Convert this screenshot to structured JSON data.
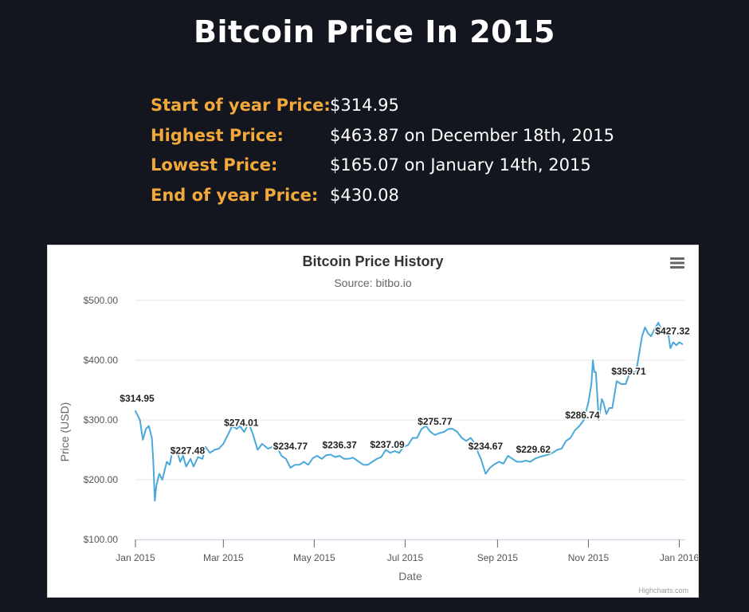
{
  "page": {
    "title": "Bitcoin Price In 2015"
  },
  "stats": [
    {
      "label": "Start of year Price:",
      "value": "$314.95"
    },
    {
      "label": "Highest Price:",
      "value": "$463.87 on December 18th, 2015"
    },
    {
      "label": "Lowest Price:",
      "value": "$165.07 on January 14th, 2015"
    },
    {
      "label": "End of year Price:",
      "value": "$430.08"
    }
  ],
  "chart_menu_icon": "hamburger-menu-icon",
  "credit": "Highcharts.com",
  "colors": {
    "background": "#14161f",
    "accent": "#f2a93b",
    "line": "#4aa9d9"
  },
  "chart_data": {
    "type": "line",
    "title": "Bitcoin Price History",
    "subtitle": "Source: bitbo.io",
    "xlabel": "Date",
    "ylabel": "Price (USD)",
    "ylim": [
      100,
      500
    ],
    "xlim": [
      "2015-01-01",
      "2016-01-05"
    ],
    "grid": true,
    "x_ticks": [
      {
        "date": "2015-01-01",
        "label": "Jan 2015"
      },
      {
        "date": "2015-03-01",
        "label": "Mar 2015"
      },
      {
        "date": "2015-05-01",
        "label": "May 2015"
      },
      {
        "date": "2015-07-01",
        "label": "Jul 2015"
      },
      {
        "date": "2015-09-01",
        "label": "Sep 2015"
      },
      {
        "date": "2015-11-01",
        "label": "Nov 2015"
      },
      {
        "date": "2016-01-01",
        "label": "Jan 2016"
      }
    ],
    "y_ticks": [
      {
        "value": 100,
        "label": "$100.00"
      },
      {
        "value": 200,
        "label": "$200.00"
      },
      {
        "value": 300,
        "label": "$300.00"
      },
      {
        "value": 400,
        "label": "$400.00"
      },
      {
        "value": 500,
        "label": "$500.00"
      }
    ],
    "series": [
      {
        "x": [
          "2015-01-01",
          "2015-01-04",
          "2015-01-06",
          "2015-01-08",
          "2015-01-10",
          "2015-01-12",
          "2015-01-13",
          "2015-01-14",
          "2015-01-15",
          "2015-01-17",
          "2015-01-19",
          "2015-01-22",
          "2015-01-24",
          "2015-01-26",
          "2015-01-28",
          "2015-01-31",
          "2015-02-02",
          "2015-02-04",
          "2015-02-07",
          "2015-02-09",
          "2015-02-12",
          "2015-02-15",
          "2015-02-17",
          "2015-02-20",
          "2015-02-23",
          "2015-02-26",
          "2015-03-01",
          "2015-03-04",
          "2015-03-07",
          "2015-03-10",
          "2015-03-12",
          "2015-03-15",
          "2015-03-18",
          "2015-03-21",
          "2015-03-24",
          "2015-03-27",
          "2015-03-31",
          "2015-04-03",
          "2015-04-06",
          "2015-04-09",
          "2015-04-12",
          "2015-04-15",
          "2015-04-18",
          "2015-04-21",
          "2015-04-24",
          "2015-04-27",
          "2015-04-30",
          "2015-05-03",
          "2015-05-06",
          "2015-05-09",
          "2015-05-12",
          "2015-05-15",
          "2015-05-18",
          "2015-05-21",
          "2015-05-24",
          "2015-05-27",
          "2015-05-31",
          "2015-06-03",
          "2015-06-06",
          "2015-06-09",
          "2015-06-12",
          "2015-06-15",
          "2015-06-18",
          "2015-06-21",
          "2015-06-24",
          "2015-06-27",
          "2015-06-30",
          "2015-07-03",
          "2015-07-06",
          "2015-07-09",
          "2015-07-12",
          "2015-07-15",
          "2015-07-18",
          "2015-07-21",
          "2015-07-24",
          "2015-07-27",
          "2015-07-30",
          "2015-08-02",
          "2015-08-05",
          "2015-08-08",
          "2015-08-11",
          "2015-08-14",
          "2015-08-17",
          "2015-08-19",
          "2015-08-21",
          "2015-08-24",
          "2015-08-27",
          "2015-08-30",
          "2015-09-02",
          "2015-09-05",
          "2015-09-08",
          "2015-09-11",
          "2015-09-14",
          "2015-09-17",
          "2015-09-20",
          "2015-09-23",
          "2015-09-26",
          "2015-09-29",
          "2015-10-02",
          "2015-10-05",
          "2015-10-08",
          "2015-10-11",
          "2015-10-14",
          "2015-10-17",
          "2015-10-20",
          "2015-10-23",
          "2015-10-26",
          "2015-10-29",
          "2015-11-01",
          "2015-11-03",
          "2015-11-04",
          "2015-11-05",
          "2015-11-06",
          "2015-11-08",
          "2015-11-10",
          "2015-11-11",
          "2015-11-13",
          "2015-11-15",
          "2015-11-17",
          "2015-11-20",
          "2015-11-23",
          "2015-11-26",
          "2015-11-29",
          "2015-12-01",
          "2015-12-03",
          "2015-12-05",
          "2015-12-07",
          "2015-12-09",
          "2015-12-11",
          "2015-12-13",
          "2015-12-15",
          "2015-12-18",
          "2015-12-20",
          "2015-12-22",
          "2015-12-24",
          "2015-12-26",
          "2015-12-28",
          "2015-12-30",
          "2016-01-01",
          "2016-01-03"
        ],
        "y": [
          315,
          300,
          267,
          285,
          290,
          270,
          230,
          165,
          190,
          210,
          200,
          230,
          225,
          250,
          255,
          230,
          240,
          222,
          235,
          222,
          238,
          235,
          255,
          245,
          250,
          252,
          260,
          275,
          290,
          285,
          290,
          280,
          295,
          275,
          250,
          260,
          252,
          255,
          255,
          240,
          235,
          220,
          225,
          225,
          230,
          225,
          236,
          240,
          235,
          241,
          242,
          238,
          240,
          235,
          235,
          237,
          230,
          225,
          225,
          230,
          235,
          238,
          250,
          245,
          248,
          245,
          255,
          258,
          270,
          270,
          285,
          290,
          280,
          275,
          278,
          280,
          285,
          285,
          280,
          270,
          265,
          270,
          260,
          245,
          234,
          210,
          220,
          226,
          230,
          227,
          240,
          235,
          230,
          230,
          232,
          230,
          235,
          238,
          240,
          242,
          245,
          250,
          252,
          265,
          270,
          283,
          290,
          300,
          330,
          360,
          400,
          380,
          380,
          300,
          335,
          330,
          310,
          320,
          320,
          365,
          360,
          360,
          380,
          380,
          380,
          410,
          440,
          455,
          445,
          440,
          450,
          463,
          450,
          445,
          455,
          420,
          430,
          425,
          430,
          427
        ]
      }
    ],
    "data_labels": [
      {
        "date": "2015-01-01",
        "value": 314.95,
        "label": "$314.95"
      },
      {
        "date": "2015-02-05",
        "value": 227.48,
        "label": "$227.48"
      },
      {
        "date": "2015-03-13",
        "value": 274.01,
        "label": "$274.01"
      },
      {
        "date": "2015-04-15",
        "value": 234.77,
        "label": "$234.77"
      },
      {
        "date": "2015-05-18",
        "value": 236.37,
        "label": "$236.37"
      },
      {
        "date": "2015-06-19",
        "value": 237.09,
        "label": "$237.09"
      },
      {
        "date": "2015-07-21",
        "value": 275.77,
        "label": "$275.77"
      },
      {
        "date": "2015-08-24",
        "value": 234.67,
        "label": "$234.67"
      },
      {
        "date": "2015-09-25",
        "value": 229.62,
        "label": "$229.62"
      },
      {
        "date": "2015-10-28",
        "value": 286.74,
        "label": "$286.74"
      },
      {
        "date": "2015-11-28",
        "value": 359.71,
        "label": "$359.71"
      },
      {
        "date": "2016-01-01",
        "value": 427.32,
        "label": "$427.32"
      }
    ]
  }
}
